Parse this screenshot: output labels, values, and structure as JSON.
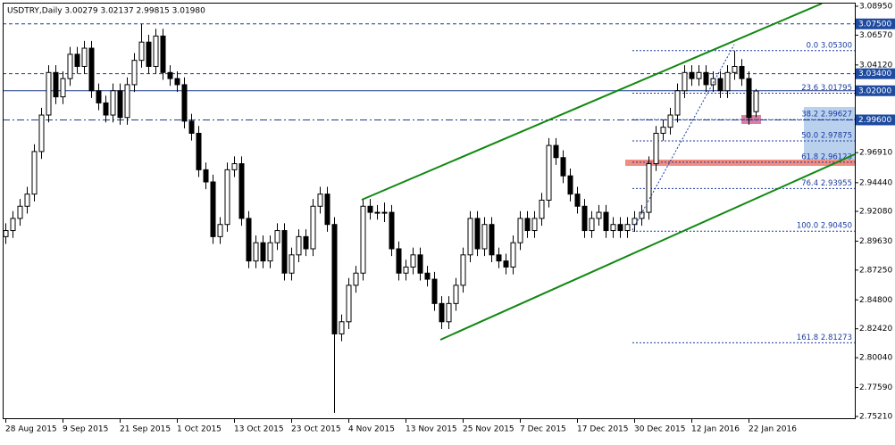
{
  "chart_data": {
    "type": "candlestick",
    "title": "USDTRY,Daily  3.00279 3.02137 2.99815 3.01980",
    "ylim": [
      2.7521,
      3.0895
    ],
    "yticks": [
      {
        "value": 3.0895,
        "label": "3.08950"
      },
      {
        "value": 3.0657,
        "label": "3.06570"
      },
      {
        "value": 3.0412,
        "label": "3.04120"
      },
      {
        "value": 2.9691,
        "label": "2.96910"
      },
      {
        "value": 2.9444,
        "label": "2.94440"
      },
      {
        "value": 2.9208,
        "label": "2.92080"
      },
      {
        "value": 2.8963,
        "label": "2.89630"
      },
      {
        "value": 2.8725,
        "label": "2.87250"
      },
      {
        "value": 2.848,
        "label": "2.84800"
      },
      {
        "value": 2.8242,
        "label": "2.82420"
      },
      {
        "value": 2.8004,
        "label": "2.80040"
      },
      {
        "value": 2.7759,
        "label": "2.77590"
      },
      {
        "value": 2.7521,
        "label": "2.75210"
      }
    ],
    "levels": [
      {
        "value": 3.075,
        "label": "3.07500"
      },
      {
        "value": 3.034,
        "label": "3.03400"
      },
      {
        "value": 3.02,
        "label": "3.02000"
      },
      {
        "value": 2.996,
        "label": "2.99600"
      }
    ],
    "fib_levels": [
      {
        "value": 3.053,
        "label": "0.0 3.05300"
      },
      {
        "value": 3.01795,
        "label": "23.6 3.01795"
      },
      {
        "value": 2.99627,
        "label": "38.2 2.99627"
      },
      {
        "value": 2.97875,
        "label": "50.0 2.97875"
      },
      {
        "value": 2.96123,
        "label": "61.8 2.96123"
      },
      {
        "value": 2.93955,
        "label": "76.4 2.93955"
      },
      {
        "value": 2.9045,
        "label": "100.0 2.90450"
      },
      {
        "value": 2.81273,
        "label": "161.8 2.81273"
      }
    ],
    "categories": [
      "28 Aug 2015",
      null,
      null,
      null,
      null,
      null,
      null,
      null,
      "9 Sep 2015",
      null,
      null,
      null,
      null,
      null,
      null,
      null,
      "21 Sep 2015",
      null,
      null,
      null,
      null,
      null,
      null,
      null,
      "1 Oct 2015",
      null,
      null,
      null,
      null,
      null,
      null,
      null,
      "13 Oct 2015",
      null,
      null,
      null,
      null,
      null,
      null,
      null,
      "23 Oct 2015",
      null,
      null,
      null,
      null,
      null,
      null,
      null,
      "4 Nov 2015",
      null,
      null,
      null,
      null,
      null,
      null,
      null,
      "13 Nov 2015",
      null,
      null,
      null,
      null,
      null,
      null,
      null,
      "25 Nov 2015",
      null,
      null,
      null,
      null,
      null,
      null,
      null,
      "7 Dec 2015",
      null,
      null,
      null,
      null,
      null,
      null,
      null,
      "17 Dec 2015",
      null,
      null,
      null,
      null,
      null,
      null,
      null,
      "30 Dec 2015",
      null,
      null,
      null,
      null,
      null,
      null,
      null,
      "12 Jan 2016",
      null,
      null,
      null,
      null,
      null,
      null,
      null,
      "22 Jan 2016",
      null
    ],
    "candles": [
      [
        2.9,
        2.911,
        2.894,
        2.905
      ],
      [
        2.905,
        2.921,
        2.899,
        2.915
      ],
      [
        2.915,
        2.931,
        2.909,
        2.925
      ],
      [
        2.925,
        2.941,
        2.919,
        2.935
      ],
      [
        2.935,
        2.976,
        2.929,
        2.97
      ],
      [
        2.97,
        3.006,
        2.964,
        3.0
      ],
      [
        3.0,
        3.041,
        2.994,
        3.035
      ],
      [
        3.035,
        3.041,
        3.009,
        3.015
      ],
      [
        3.015,
        3.036,
        3.009,
        3.03
      ],
      [
        3.03,
        3.056,
        3.024,
        3.05
      ],
      [
        3.05,
        3.056,
        3.034,
        3.04
      ],
      [
        3.04,
        3.061,
        3.034,
        3.055
      ],
      [
        3.055,
        3.061,
        3.014,
        3.02
      ],
      [
        3.02,
        3.026,
        3.004,
        3.01
      ],
      [
        3.01,
        3.016,
        2.994,
        3.0
      ],
      [
        3.0,
        3.026,
        2.994,
        3.02
      ],
      [
        3.02,
        3.026,
        2.992,
        2.998
      ],
      [
        2.998,
        3.031,
        2.992,
        3.025
      ],
      [
        3.025,
        3.051,
        3.019,
        3.045
      ],
      [
        3.045,
        3.075,
        3.039,
        3.06
      ],
      [
        3.06,
        3.066,
        3.034,
        3.04
      ],
      [
        3.04,
        3.071,
        3.034,
        3.065
      ],
      [
        3.065,
        3.071,
        3.029,
        3.035
      ],
      [
        3.035,
        3.041,
        3.024,
        3.03
      ],
      [
        3.03,
        3.036,
        3.019,
        3.025
      ],
      [
        3.025,
        3.031,
        2.989,
        2.995
      ],
      [
        2.995,
        3.001,
        2.979,
        2.985
      ],
      [
        2.985,
        2.991,
        2.949,
        2.955
      ],
      [
        2.955,
        2.961,
        2.939,
        2.945
      ],
      [
        2.945,
        2.951,
        2.894,
        2.9
      ],
      [
        2.9,
        2.916,
        2.894,
        2.91
      ],
      [
        2.91,
        2.961,
        2.904,
        2.955
      ],
      [
        2.955,
        2.966,
        2.949,
        2.96
      ],
      [
        2.96,
        2.966,
        2.909,
        2.915
      ],
      [
        2.915,
        2.921,
        2.874,
        2.88
      ],
      [
        2.88,
        2.901,
        2.874,
        2.895
      ],
      [
        2.895,
        2.901,
        2.874,
        2.88
      ],
      [
        2.88,
        2.901,
        2.874,
        2.895
      ],
      [
        2.895,
        2.911,
        2.889,
        2.905
      ],
      [
        2.905,
        2.911,
        2.864,
        2.87
      ],
      [
        2.87,
        2.891,
        2.864,
        2.885
      ],
      [
        2.885,
        2.906,
        2.879,
        2.9
      ],
      [
        2.9,
        2.906,
        2.884,
        2.89
      ],
      [
        2.89,
        2.931,
        2.884,
        2.925
      ],
      [
        2.925,
        2.941,
        2.919,
        2.935
      ],
      [
        2.935,
        2.941,
        2.904,
        2.91
      ],
      [
        2.91,
        2.916,
        2.755,
        2.82
      ],
      [
        2.82,
        2.836,
        2.814,
        2.83
      ],
      [
        2.83,
        2.866,
        2.824,
        2.86
      ],
      [
        2.86,
        2.876,
        2.854,
        2.87
      ],
      [
        2.87,
        2.931,
        2.864,
        2.925
      ],
      [
        2.925,
        2.931,
        2.914,
        2.92
      ],
      [
        2.92,
        2.926,
        2.914,
        2.92
      ],
      [
        2.92,
        2.928,
        2.912,
        2.92
      ],
      [
        2.92,
        2.926,
        2.884,
        2.89
      ],
      [
        2.89,
        2.896,
        2.864,
        2.87
      ],
      [
        2.87,
        2.881,
        2.864,
        2.875
      ],
      [
        2.875,
        2.891,
        2.869,
        2.885
      ],
      [
        2.885,
        2.891,
        2.864,
        2.87
      ],
      [
        2.87,
        2.876,
        2.859,
        2.865
      ],
      [
        2.865,
        2.871,
        2.839,
        2.845
      ],
      [
        2.845,
        2.851,
        2.824,
        2.83
      ],
      [
        2.83,
        2.851,
        2.824,
        2.845
      ],
      [
        2.845,
        2.866,
        2.839,
        2.86
      ],
      [
        2.86,
        2.891,
        2.854,
        2.885
      ],
      [
        2.885,
        2.921,
        2.879,
        2.915
      ],
      [
        2.915,
        2.921,
        2.884,
        2.89
      ],
      [
        2.89,
        2.916,
        2.884,
        2.91
      ],
      [
        2.91,
        2.916,
        2.879,
        2.885
      ],
      [
        2.885,
        2.891,
        2.874,
        2.88
      ],
      [
        2.88,
        2.886,
        2.869,
        2.875
      ],
      [
        2.875,
        2.901,
        2.869,
        2.895
      ],
      [
        2.895,
        2.921,
        2.889,
        2.915
      ],
      [
        2.915,
        2.921,
        2.899,
        2.905
      ],
      [
        2.905,
        2.921,
        2.899,
        2.915
      ],
      [
        2.915,
        2.936,
        2.909,
        2.93
      ],
      [
        2.93,
        2.981,
        2.924,
        2.975
      ],
      [
        2.975,
        2.981,
        2.959,
        2.965
      ],
      [
        2.965,
        2.971,
        2.944,
        2.95
      ],
      [
        2.95,
        2.956,
        2.929,
        2.935
      ],
      [
        2.935,
        2.941,
        2.919,
        2.925
      ],
      [
        2.925,
        2.931,
        2.899,
        2.905
      ],
      [
        2.905,
        2.921,
        2.899,
        2.915
      ],
      [
        2.915,
        2.926,
        2.909,
        2.92
      ],
      [
        2.92,
        2.926,
        2.899,
        2.905
      ],
      [
        2.905,
        2.916,
        2.899,
        2.91
      ],
      [
        2.91,
        2.916,
        2.899,
        2.905
      ],
      [
        2.905,
        2.916,
        2.899,
        2.91
      ],
      [
        2.91,
        2.921,
        2.904,
        2.915
      ],
      [
        2.915,
        2.926,
        2.909,
        2.92
      ],
      [
        2.92,
        2.966,
        2.914,
        2.96
      ],
      [
        2.96,
        2.991,
        2.954,
        2.985
      ],
      [
        2.985,
        2.996,
        2.979,
        2.99
      ],
      [
        2.99,
        3.006,
        2.984,
        3.0
      ],
      [
        3.0,
        3.026,
        2.994,
        3.02
      ],
      [
        3.02,
        3.041,
        3.014,
        3.035
      ],
      [
        3.035,
        3.041,
        3.024,
        3.03
      ],
      [
        3.03,
        3.041,
        3.024,
        3.035
      ],
      [
        3.035,
        3.041,
        3.019,
        3.025
      ],
      [
        3.025,
        3.036,
        3.019,
        3.03
      ],
      [
        3.03,
        3.036,
        3.014,
        3.02
      ],
      [
        3.02,
        3.041,
        3.014,
        3.035
      ],
      [
        3.035,
        3.053,
        3.029,
        3.04
      ],
      [
        3.04,
        3.046,
        3.024,
        3.03
      ],
      [
        3.03,
        3.036,
        2.992,
        2.998
      ],
      [
        3.00279,
        3.02137,
        2.99815,
        3.0198
      ]
    ]
  }
}
